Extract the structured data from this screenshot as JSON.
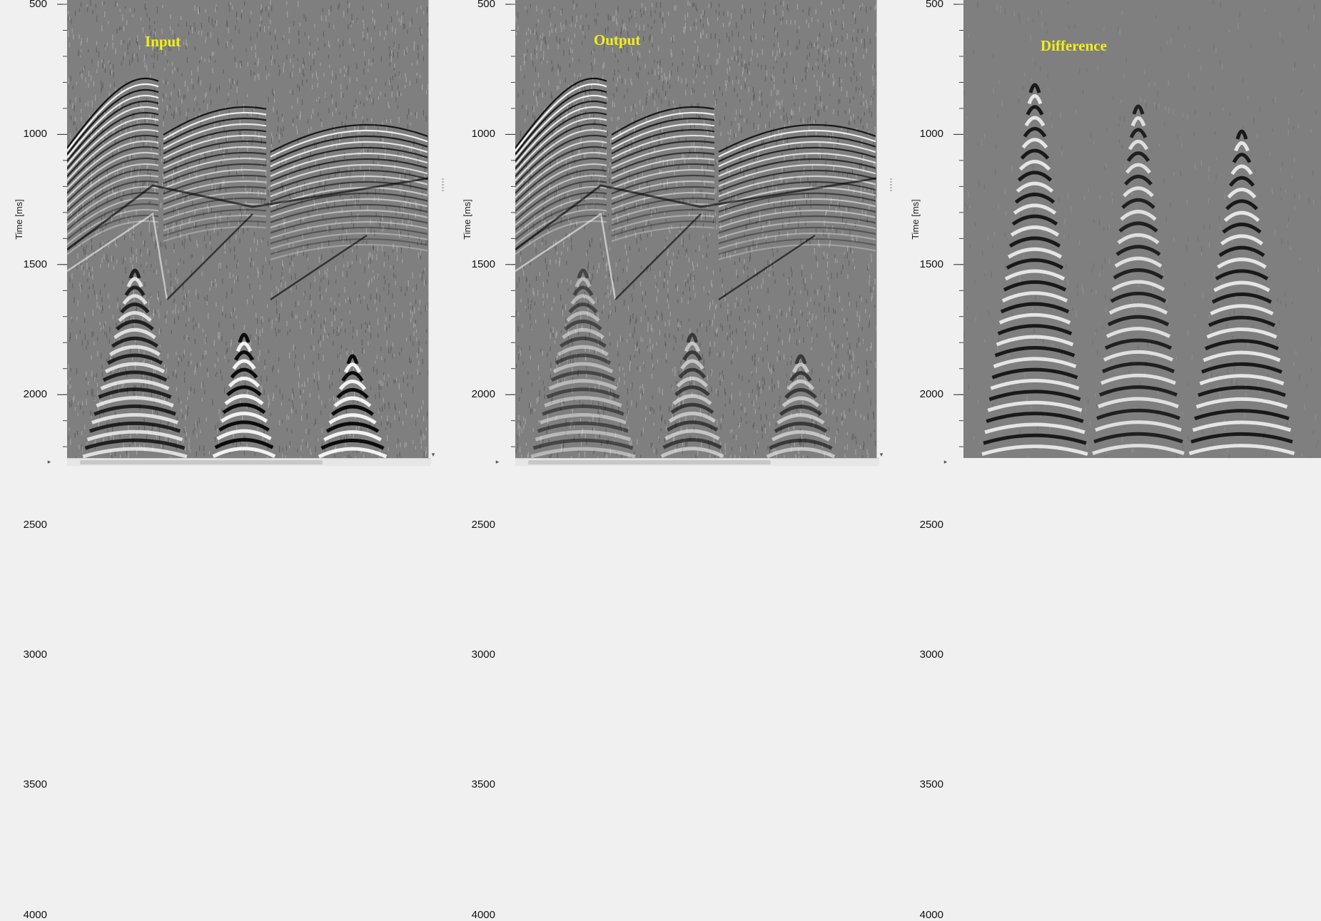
{
  "panels": [
    {
      "title": "Input",
      "ylabel": "Time [ms]"
    },
    {
      "title": "Output",
      "ylabel": "Time [ms]"
    },
    {
      "title": "Difference",
      "ylabel": "Time [ms]"
    }
  ],
  "yticks": [
    "500",
    "1000",
    "1500",
    "2000",
    "2500",
    "3000",
    "3500",
    "4000"
  ],
  "colors": {
    "background": "#7f7f7f",
    "title": "#f2ef16"
  },
  "icons": {
    "scroll_right": "triangle-right-icon",
    "scroll_down": "triangle-down-icon"
  },
  "scroll_glyphs": {
    "right": "▸",
    "down": "▾"
  }
}
